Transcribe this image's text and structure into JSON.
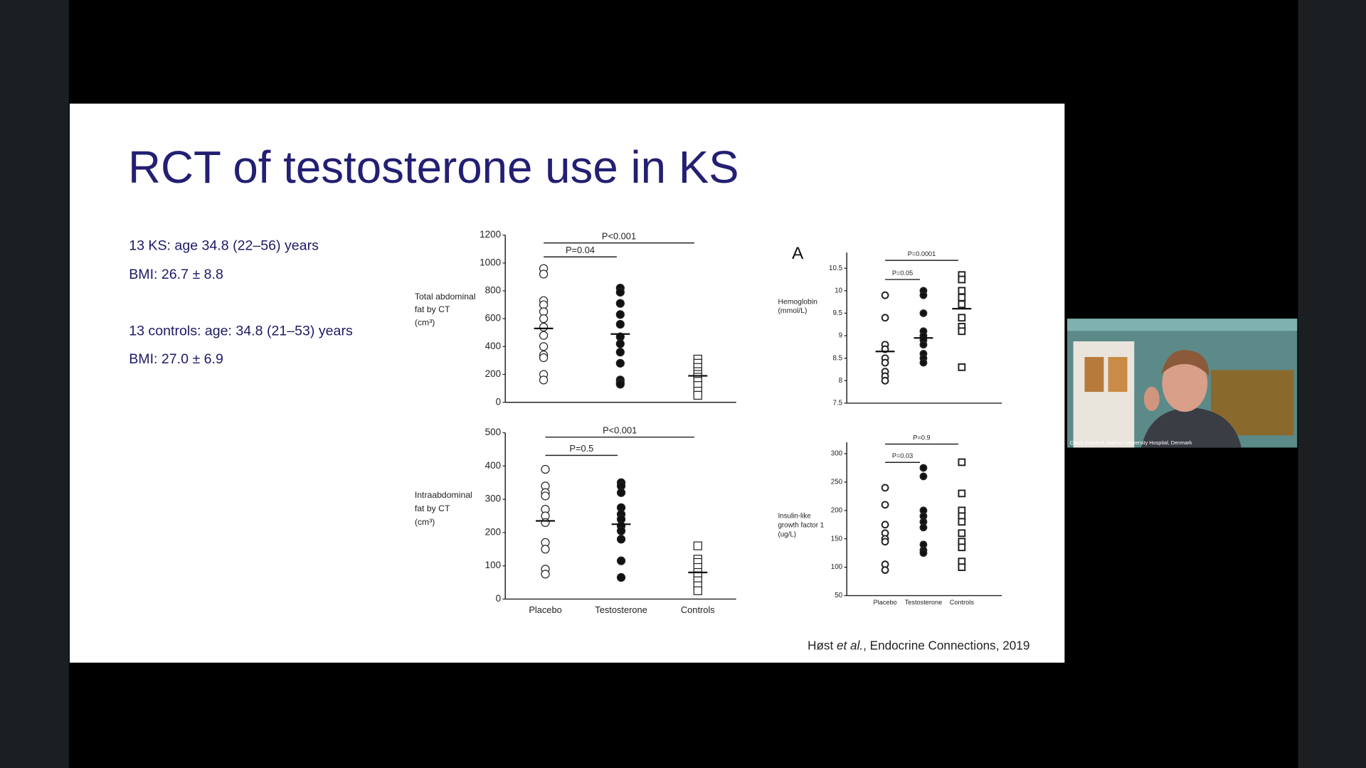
{
  "slide": {
    "title": "RCT of testosterone use in KS",
    "lines": [
      "13 KS: age 34.8 (22–56) years",
      "BMI: 26.7 ± 8.8",
      "13 controls: age: 34.8 (21–53) years",
      "BMI: 27.0 ± 6.9"
    ],
    "citation": [
      "Høst ",
      "et al.",
      ", Endocrine Connections, 2019"
    ]
  },
  "video": {
    "caption": "Claus Gravholt, Aarhus University Hospital, Denmark"
  },
  "chart_data": [
    {
      "type": "dot",
      "ylabel": [
        "Total abdominal",
        "fat by CT",
        "(cm³)"
      ],
      "categories": [
        null,
        null,
        null
      ],
      "values": [
        [
          960,
          920,
          730,
          700,
          650,
          600,
          540,
          480,
          400,
          340,
          320,
          200,
          160
        ],
        [
          820,
          790,
          710,
          630,
          560,
          470,
          420,
          360,
          280,
          160,
          140,
          130
        ],
        [
          310,
          280,
          250,
          220,
          200,
          180,
          150,
          120,
          80,
          50
        ]
      ],
      "means": [
        530,
        490,
        190
      ],
      "annotations": [
        "P<0.001",
        "P=0.04"
      ],
      "ylim": [
        0,
        1200
      ],
      "yticks": [
        0,
        200,
        400,
        600,
        800,
        1000,
        1200
      ]
    },
    {
      "type": "dot",
      "ylabel": [
        "Intraabdominal",
        "fat by CT",
        "(cm³)"
      ],
      "categories": [
        "Placebo",
        "Testosterone",
        "Controls"
      ],
      "values": [
        [
          390,
          340,
          320,
          310,
          270,
          250,
          230,
          170,
          150,
          90,
          75
        ],
        [
          350,
          340,
          320,
          275,
          255,
          240,
          220,
          205,
          180,
          115,
          65
        ],
        [
          160,
          120,
          110,
          95,
          80,
          70,
          55,
          40,
          25
        ]
      ],
      "means": [
        235,
        225,
        80
      ],
      "annotations": [
        "P<0.001",
        "P=0.5"
      ],
      "ylim": [
        0,
        500
      ],
      "yticks": [
        0,
        100,
        200,
        300,
        400,
        500
      ]
    },
    {
      "type": "dot",
      "panel_label": "A",
      "ylabel": [
        "Hemoglobin",
        "(mmol/L)"
      ],
      "categories": [
        null,
        null,
        null
      ],
      "values": [
        [
          9.9,
          9.4,
          8.8,
          8.7,
          8.5,
          8.4,
          8.2,
          8.1,
          8.0
        ],
        [
          10.0,
          9.9,
          9.5,
          9.1,
          9.0,
          8.9,
          8.8,
          8.6,
          8.5,
          8.4
        ],
        [
          10.35,
          10.25,
          10.0,
          9.85,
          9.7,
          9.4,
          9.2,
          9.1,
          8.3
        ]
      ],
      "means": [
        8.65,
        8.95,
        9.6
      ],
      "annotations": [
        "P=0.0001",
        "P=0.05"
      ],
      "ylim": [
        7.5,
        10.85
      ],
      "yticks": [
        7.5,
        8,
        8.5,
        9,
        9.5,
        10,
        10.5
      ]
    },
    {
      "type": "dot",
      "ylabel": [
        "Insulin-like",
        "growth factor 1",
        "(ug/L)"
      ],
      "categories": [
        "Placebo",
        "Testosterone",
        "Controls"
      ],
      "values": [
        [
          240,
          210,
          175,
          160,
          150,
          145,
          105,
          95
        ],
        [
          275,
          260,
          200,
          190,
          180,
          170,
          140,
          130,
          125
        ],
        [
          285,
          230,
          200,
          190,
          180,
          160,
          145,
          135,
          110,
          100
        ]
      ],
      "annotations": [
        "P=0.9",
        "P=0.03"
      ],
      "ylim": [
        50,
        320
      ],
      "yticks": [
        50,
        100,
        150,
        200,
        250,
        300
      ]
    }
  ]
}
